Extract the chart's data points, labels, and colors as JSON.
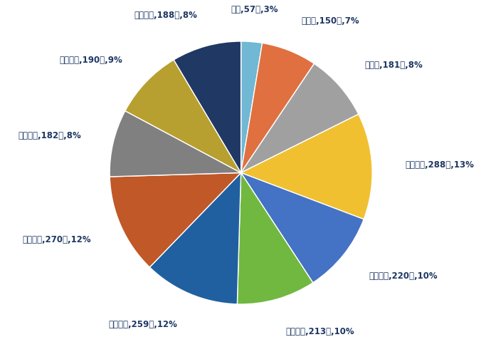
{
  "labels": [
    "０歳",
    "１歳～",
    "５歳～",
    "１０歳～",
    "２０歳～",
    "３０歳～",
    "４０歳～",
    "５０歳～",
    "６０歳～",
    "７０歳～",
    "８０歳～"
  ],
  "values": [
    57,
    150,
    181,
    288,
    220,
    213,
    259,
    270,
    182,
    190,
    188
  ],
  "colors": [
    "#70B8D4",
    "#E07040",
    "#A0A0A0",
    "#F0C030",
    "#4472C4",
    "#70B840",
    "#2060A0",
    "#C05828",
    "#808080",
    "#B8A030",
    "#1F3864"
  ],
  "autopct_labels": [
    "０歳,57人,3%",
    "１歳～,150人,7%",
    "５歳～,181人,8%",
    "１０歳～,288人,13%",
    "２０歳～,220人,10%",
    "３０歳～,213人,10%",
    "４０歳～,259人,12%",
    "５０歳～,270人,12%",
    "６０歳～,182人,8%",
    "７０歳～,190人,9%",
    "８０歳～,188人,8%"
  ],
  "background_color": "#FFFFFF",
  "text_color": "#1F3864",
  "figsize": [
    6.9,
    4.81
  ],
  "dpi": 100
}
